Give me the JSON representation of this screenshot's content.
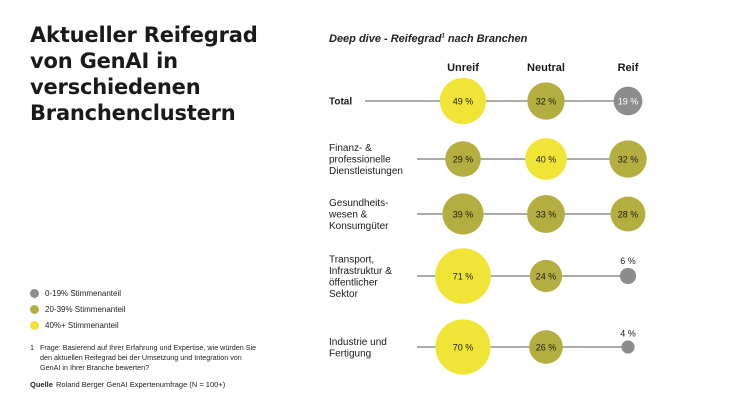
{
  "page": {
    "title": "Aktueller Reifegrad von GenAI in verschiedenen Branchenclustern",
    "subtitle": "Deep dive - Reifegrad",
    "subtitle_sup": "1"
  },
  "legend": [
    {
      "label": "0-19% Stimmenanteil",
      "color": "#8d8d8d"
    },
    {
      "label": "20-39% Stimmenanteil",
      "color": "#b3ae3f"
    },
    {
      "label": "40%+ Stimmenanteil",
      "color": "#f0e536"
    }
  ],
  "footnote": {
    "number": "1",
    "text": "Frage: Basierend auf Ihrer Erfahrung und Expertise, wie würden Sie den aktuellen Reifegrad bei der Umsetzung und Integration von GenAI in Ihrer Branche bewerten?"
  },
  "source": {
    "label": "Quelle",
    "text": "Roland Berger GenAI Expertenumfrage (N = 100+)"
  },
  "chart_data": {
    "type": "bubble",
    "unit": "%",
    "columns": [
      "Unreif",
      "Neutral",
      "Reif"
    ],
    "rows": [
      {
        "category": "Total",
        "values": [
          49,
          32,
          19
        ]
      },
      {
        "category": "Finanz- & professionelle Dienstleistungen",
        "values": [
          29,
          40,
          32
        ]
      },
      {
        "category": "Gesundheitswesen & Konsumgüter",
        "values": [
          39,
          33,
          28
        ]
      },
      {
        "category": "Transport, Infrastruktur & öffentlicher Sektor",
        "values": [
          71,
          24,
          6
        ]
      },
      {
        "category": "Industrie und Fertigung",
        "values": [
          70,
          26,
          4
        ]
      }
    ],
    "color_scale": [
      {
        "min": 0,
        "max": 19,
        "color": "#8d8d8d"
      },
      {
        "min": 20,
        "max": 39,
        "color": "#b3ae3f"
      },
      {
        "min": 40,
        "max": 100,
        "color": "#f0e536"
      }
    ]
  }
}
